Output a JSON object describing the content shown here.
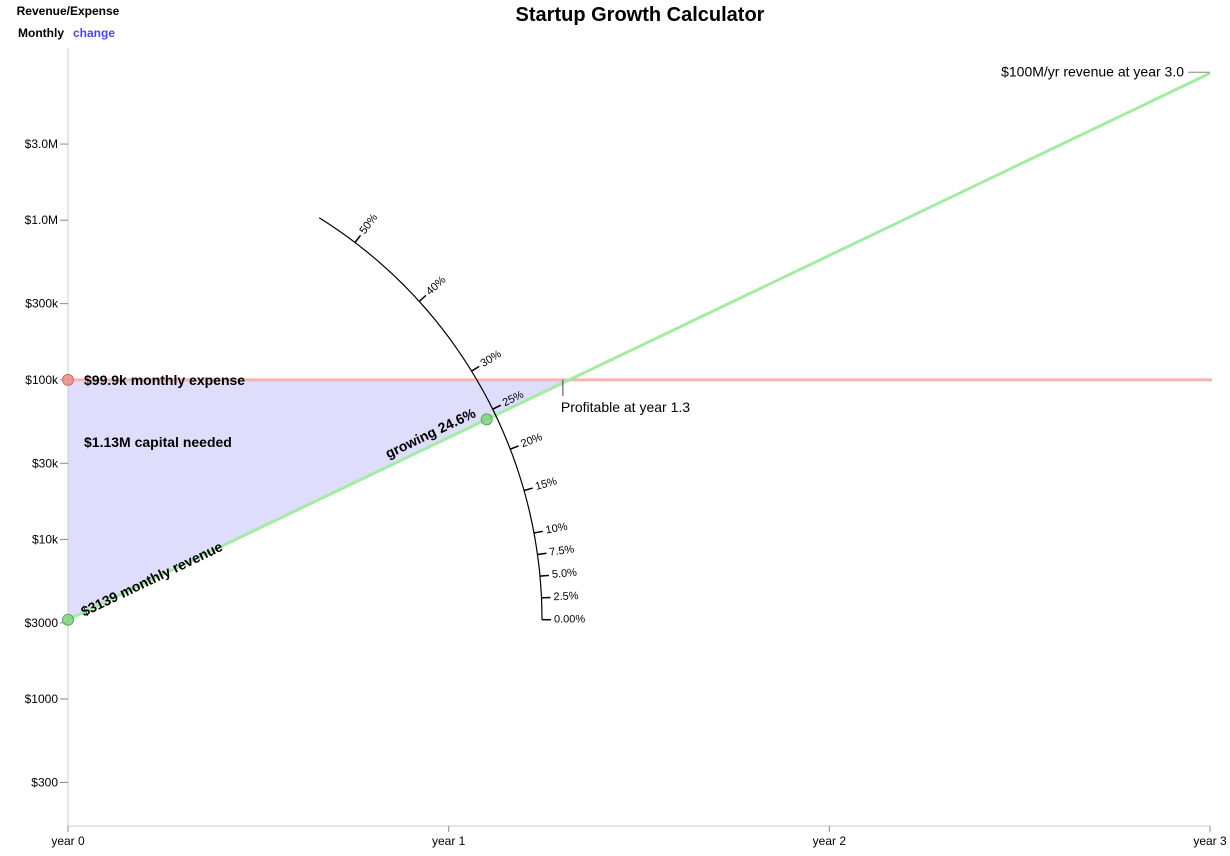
{
  "header": {
    "title": "Startup Growth Calculator",
    "mode_label": "Revenue/Expense",
    "period_label": "Monthly",
    "change_link": "change"
  },
  "colors": {
    "revenue_line": "#a3eca3",
    "expense_line": "#f4b4b4",
    "capital_fill": "#dcdcfc",
    "revenue_handle": "#7ed47e",
    "expense_handle": "#ec8d8d",
    "axis": "#cccccc"
  },
  "chart_data": {
    "type": "line",
    "title": "Startup Growth Calculator",
    "xlabel": "",
    "ylabel": "",
    "y_scale": "log",
    "xlim": [
      0,
      3
    ],
    "ylim": [
      160,
      12000000
    ],
    "x_ticks": [
      {
        "value": 0,
        "label": "year 0"
      },
      {
        "value": 1,
        "label": "year 1"
      },
      {
        "value": 2,
        "label": "year 2"
      },
      {
        "value": 3,
        "label": "year 3"
      }
    ],
    "y_ticks": [
      {
        "value": 300,
        "label": "$300"
      },
      {
        "value": 1000,
        "label": "$1000"
      },
      {
        "value": 3000,
        "label": "$3000"
      },
      {
        "value": 10000,
        "label": "$10k"
      },
      {
        "value": 30000,
        "label": "$30k"
      },
      {
        "value": 100000,
        "label": "$100k"
      },
      {
        "value": 300000,
        "label": "$300k"
      },
      {
        "value": 1000000,
        "label": "$1.0M"
      },
      {
        "value": 3000000,
        "label": "$3.0M"
      }
    ],
    "revenue": {
      "start_value": 3139,
      "end_x": 3.0,
      "end_value": 8333333,
      "label": "$3139 monthly revenue"
    },
    "expense": {
      "value": 99900,
      "label": "$99.9k monthly expense"
    },
    "growth": {
      "rate_value": 24.6,
      "label": "growing 24.6%",
      "handle_x": 1.1
    },
    "capital": {
      "label": "$1.13M capital needed"
    },
    "profitable": {
      "x": 1.3,
      "label": "Profitable at year 1.3"
    },
    "target": {
      "x": 3.0,
      "label": "$100M/yr revenue at year 3.0"
    },
    "growth_dial": {
      "ticks": [
        {
          "value": 0,
          "label": "0.00%"
        },
        {
          "value": 2.5,
          "label": "2.5%"
        },
        {
          "value": 5,
          "label": "5.0%"
        },
        {
          "value": 7.5,
          "label": "7.5%"
        },
        {
          "value": 10,
          "label": "10%"
        },
        {
          "value": 15,
          "label": "15%"
        },
        {
          "value": 20,
          "label": "20%"
        },
        {
          "value": 25,
          "label": "25%"
        },
        {
          "value": 30,
          "label": "30%"
        },
        {
          "value": 40,
          "label": "40%"
        },
        {
          "value": 50,
          "label": "50%"
        }
      ],
      "max": 55
    }
  }
}
